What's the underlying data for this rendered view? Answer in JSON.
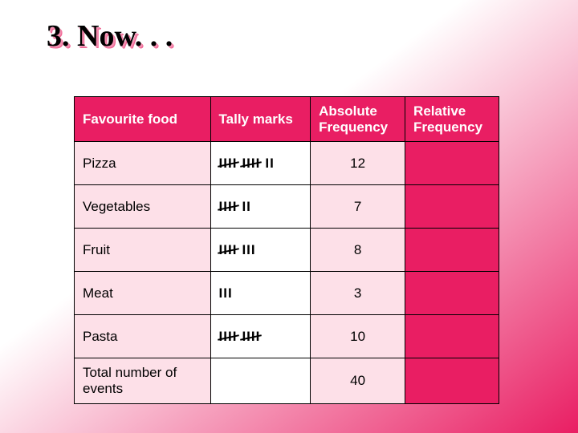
{
  "title": "3. Now. . .",
  "headers": {
    "food": "Favourite food",
    "tally": "Tally marks",
    "abs": "Absolute Frequency",
    "rel": "Relative Frequency"
  },
  "rows": [
    {
      "food": "Pizza",
      "tally_fives": 2,
      "tally_ones": 2,
      "abs": "12",
      "rel": ""
    },
    {
      "food": "Vegetables",
      "tally_fives": 1,
      "tally_ones": 2,
      "abs": "7",
      "rel": ""
    },
    {
      "food": "Fruit",
      "tally_fives": 1,
      "tally_ones": 3,
      "abs": "8",
      "rel": ""
    },
    {
      "food": "Meat",
      "tally_fives": 0,
      "tally_ones": 3,
      "abs": "3",
      "rel": ""
    },
    {
      "food": "Pasta",
      "tally_fives": 2,
      "tally_ones": 0,
      "abs": "10",
      "rel": ""
    }
  ],
  "total_row": {
    "label": "Total number of events",
    "tally": "",
    "abs": "40",
    "rel": ""
  },
  "colors": {
    "header_bg": "#e91e63",
    "header_fg": "#ffffff",
    "cell_pink": "#fde0e8",
    "cell_white": "#ffffff",
    "border": "#000000",
    "title_text": "#000000",
    "title_shadow1": "#f48fb1",
    "title_shadow2": "#f06292"
  }
}
